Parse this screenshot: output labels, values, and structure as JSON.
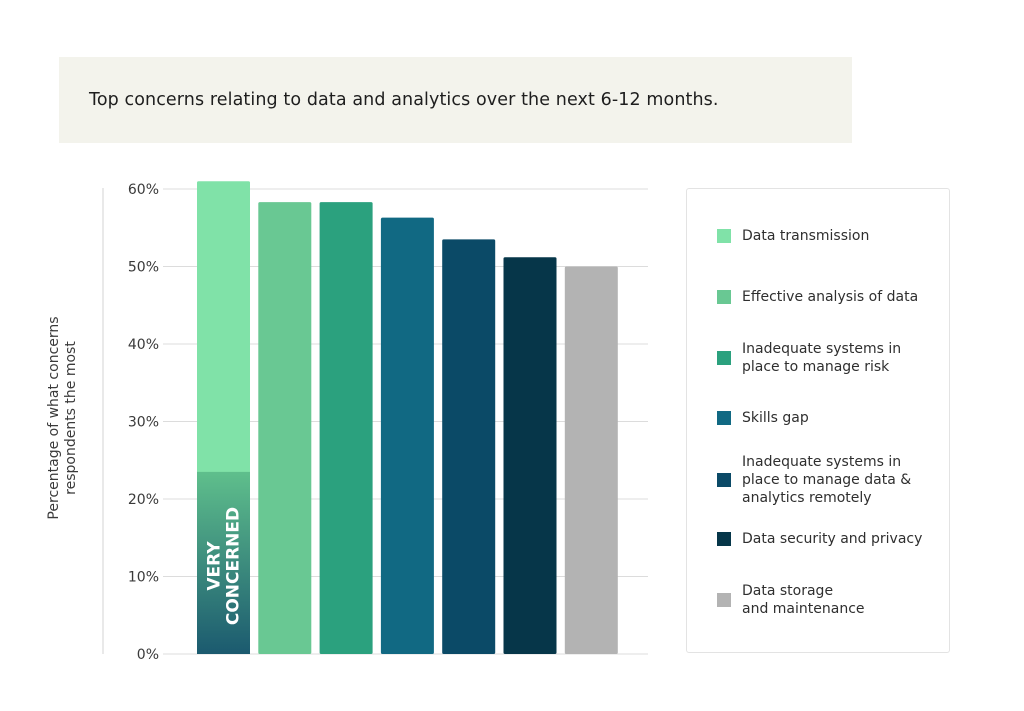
{
  "title": "Top concerns relating to data and analytics over the next 6-12 months.",
  "chart_data": {
    "type": "bar",
    "title": "Top concerns relating to data and analytics over the next 6-12 months.",
    "ylabel": "Percentage of what concerns respondents the most",
    "ylabel_lines": [
      "Percentage of what concerns",
      "respondents the most"
    ],
    "xlabel": "",
    "ylim": [
      0,
      60
    ],
    "yticks": [
      0,
      10,
      20,
      30,
      40,
      50,
      60
    ],
    "ytick_labels": [
      "0%",
      "10%",
      "20%",
      "30%",
      "40%",
      "50%",
      "60%"
    ],
    "grid": true,
    "legend_position": "right",
    "categories": [
      "Data transmission",
      "Effective analysis of data",
      "Inadequate systems in place to manage risk",
      "Skills gap",
      "Inadequate systems in place to manage data & analytics remotely",
      "Data security and privacy",
      "Data storage and maintenance"
    ],
    "values": [
      61,
      58.3,
      58.3,
      56.3,
      53.5,
      51.2,
      50
    ],
    "colors": [
      "#80e2a8",
      "#69c893",
      "#2ba17e",
      "#116983",
      "#0b4a67",
      "#063649",
      "#b3b3b3"
    ],
    "annotation": {
      "text_lines": [
        "VERY",
        "CONCERNED"
      ],
      "bar_index": 0,
      "value": 23.5,
      "gradient_colors": [
        "#5fbf8c",
        "#1b5a6f"
      ]
    }
  },
  "legend": [
    {
      "lines": [
        "Data transmission"
      ],
      "color": "#80e2a8"
    },
    {
      "lines": [
        "Effective analysis of data"
      ],
      "color": "#69c893"
    },
    {
      "lines": [
        "Inadequate systems in",
        "place to manage risk"
      ],
      "color": "#2ba17e"
    },
    {
      "lines": [
        "Skills gap"
      ],
      "color": "#116983"
    },
    {
      "lines": [
        "Inadequate systems in",
        "place to manage data &",
        "analytics remotely"
      ],
      "color": "#0b4a67"
    },
    {
      "lines": [
        "Data security and privacy"
      ],
      "color": "#063649"
    },
    {
      "lines": [
        "Data storage",
        "and maintenance"
      ],
      "color": "#b3b3b3"
    }
  ]
}
